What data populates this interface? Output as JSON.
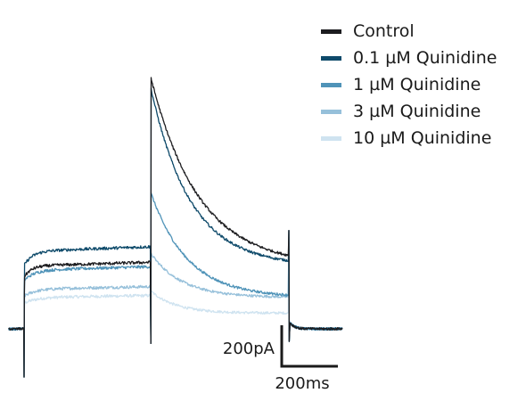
{
  "chart_data": {
    "type": "line",
    "title": "",
    "xlabel": "",
    "ylabel": "",
    "units": {
      "time": "ms",
      "current": "pA"
    },
    "protocol": {
      "step1_start_ms": 0,
      "step2_start_ms": 450,
      "step2_end_ms": 940,
      "trace_end_ms": 1130
    },
    "series": [
      {
        "name": "Control",
        "color": "#1c1c1f",
        "baseline": 0,
        "plateau": 300,
        "peak": 1200,
        "tail_end": 300,
        "step_rise_ms": 25,
        "decay_ms": 170
      },
      {
        "name": "0.1 µM Quinidine",
        "color": "#0e4a6a",
        "baseline": 0,
        "plateau": 370,
        "peak": 1150,
        "tail_end": 300,
        "step_rise_ms": 30,
        "decay_ms": 140
      },
      {
        "name": "1 µM Quinidine",
        "color": "#4f93b8",
        "baseline": 0,
        "plateau": 280,
        "peak": 650,
        "tail_end": 150,
        "step_rise_ms": 35,
        "decay_ms": 130
      },
      {
        "name": "3 µM Quinidine",
        "color": "#96c0da",
        "baseline": 0,
        "plateau": 190,
        "peak": 360,
        "tail_end": 150,
        "step_rise_ms": 40,
        "decay_ms": 110
      },
      {
        "name": "10 µM Quinidine",
        "color": "#cfe3f0",
        "baseline": 0,
        "plateau": 150,
        "peak": 180,
        "tail_end": 75,
        "step_rise_ms": 45,
        "decay_ms": 90
      }
    ],
    "scale_bar": {
      "current_label": "200pA",
      "time_label": "200ms",
      "current_value": 200,
      "time_value": 200
    }
  }
}
